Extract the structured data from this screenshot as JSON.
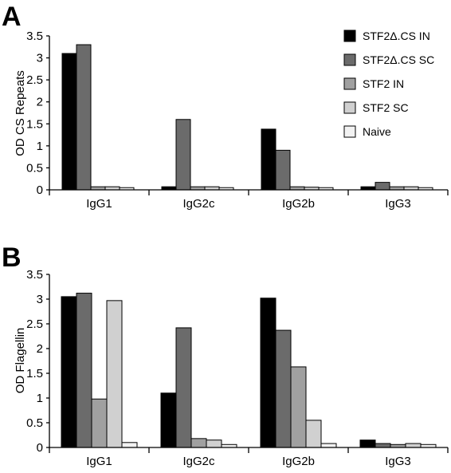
{
  "panels": [
    {
      "letter": "A",
      "chart_data": {
        "type": "bar",
        "title": "",
        "xlabel": "",
        "ylabel": "OD CS Repeats",
        "ylim": [
          0,
          3.5
        ],
        "yticks": [
          "0",
          "0.5",
          "1",
          "1.5",
          "2",
          "2.5",
          "3",
          "3.5"
        ],
        "categories": [
          "IgG1",
          "IgG2c",
          "IgG2b",
          "IgG3"
        ],
        "series": [
          {
            "name": "STF2Δ.CS IN",
            "color": "#000000",
            "values": [
              3.1,
              0.07,
              1.38,
              0.07
            ]
          },
          {
            "name": "STF2Δ.CS SC",
            "color": "#6b6b6b",
            "values": [
              3.3,
              1.6,
              0.9,
              0.17
            ]
          },
          {
            "name": "STF2 IN",
            "color": "#a0a0a0",
            "values": [
              0.07,
              0.07,
              0.07,
              0.07
            ]
          },
          {
            "name": "STF2 SC",
            "color": "#d0d0d0",
            "values": [
              0.07,
              0.07,
              0.06,
              0.07
            ]
          },
          {
            "name": "Naive",
            "color": "#f2f2f2",
            "values": [
              0.05,
              0.05,
              0.05,
              0.05
            ]
          }
        ],
        "legend": "top-right",
        "grid": false
      }
    },
    {
      "letter": "B",
      "chart_data": {
        "type": "bar",
        "title": "",
        "xlabel": "",
        "ylabel": "OD Flagellin",
        "ylim": [
          0,
          3.5
        ],
        "yticks": [
          "0",
          "0.5",
          "1",
          "1.5",
          "2",
          "2.5",
          "3",
          "3.5"
        ],
        "categories": [
          "IgG1",
          "IgG2c",
          "IgG2b",
          "IgG3"
        ],
        "series": [
          {
            "name": "STF2Δ.CS IN",
            "color": "#000000",
            "values": [
              3.05,
              1.1,
              3.02,
              0.15
            ]
          },
          {
            "name": "STF2Δ.CS SC",
            "color": "#6b6b6b",
            "values": [
              3.12,
              2.42,
              2.37,
              0.08
            ]
          },
          {
            "name": "STF2 IN",
            "color": "#a0a0a0",
            "values": [
              0.98,
              0.18,
              1.63,
              0.06
            ]
          },
          {
            "name": "STF2 SC",
            "color": "#d0d0d0",
            "values": [
              2.97,
              0.15,
              0.55,
              0.08
            ]
          },
          {
            "name": "Naive",
            "color": "#f2f2f2",
            "values": [
              0.1,
              0.06,
              0.08,
              0.06
            ]
          }
        ],
        "legend": "none",
        "grid": false
      }
    }
  ]
}
